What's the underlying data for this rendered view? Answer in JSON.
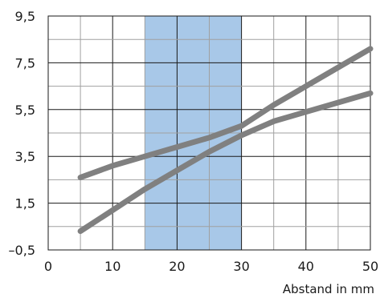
{
  "chart_data": {
    "type": "line",
    "xlabel": "Abstand in mm",
    "ylabel": "",
    "xlim": [
      0,
      50
    ],
    "ylim": [
      -0.5,
      9.5
    ],
    "x_ticks": [
      0,
      10,
      20,
      30,
      40,
      50
    ],
    "x_tick_labels": [
      "0",
      "10",
      "20",
      "30",
      "40",
      "50"
    ],
    "y_ticks": [
      -0.5,
      1.5,
      3.5,
      5.5,
      7.5,
      9.5
    ],
    "y_tick_labels": [
      "–0,5",
      "1,5",
      "3,5",
      "5,5",
      "7,5",
      "9,5"
    ],
    "grid": true,
    "highlight_band": {
      "x_from": 15,
      "x_to": 30,
      "color": "#a8c8e8"
    },
    "series": [
      {
        "color": "#808080",
        "x": [
          5,
          10,
          15,
          20,
          25,
          30,
          35,
          40,
          45,
          50
        ],
        "y": [
          2.6,
          3.1,
          3.5,
          3.9,
          4.3,
          4.8,
          5.7,
          6.5,
          7.3,
          8.1
        ]
      },
      {
        "color": "#808080",
        "x": [
          5,
          10,
          15,
          20,
          25,
          30,
          35,
          40,
          45,
          50
        ],
        "y": [
          0.3,
          1.2,
          2.1,
          2.9,
          3.7,
          4.4,
          5.0,
          5.4,
          5.8,
          6.2
        ]
      }
    ]
  }
}
